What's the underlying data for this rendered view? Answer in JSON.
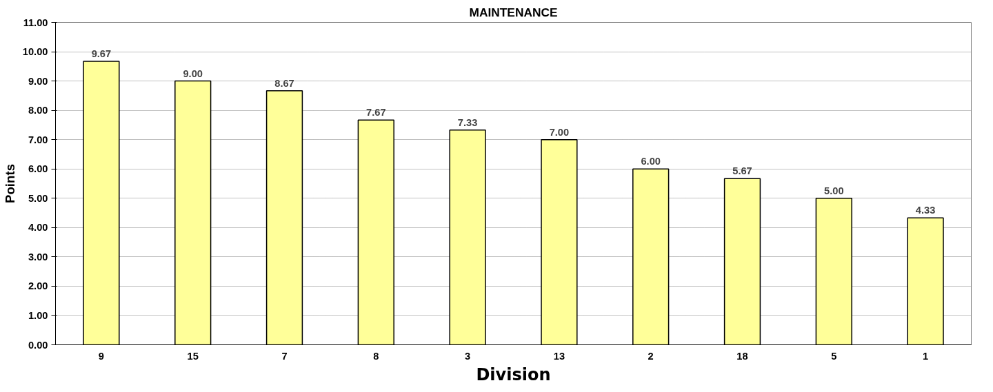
{
  "chart_data": {
    "type": "bar",
    "title": "MAINTENANCE",
    "xlabel": "Division",
    "ylabel": "Points",
    "categories": [
      "9",
      "15",
      "7",
      "8",
      "3",
      "13",
      "2",
      "18",
      "5",
      "1"
    ],
    "values": [
      9.67,
      9.0,
      8.67,
      7.67,
      7.33,
      7.0,
      6.0,
      5.67,
      5.0,
      4.33
    ],
    "value_labels": [
      "9.67",
      "9.00",
      "8.67",
      "7.67",
      "7.33",
      "7.00",
      "6.00",
      "5.67",
      "5.00",
      "4.33"
    ],
    "color": "#ffff99",
    "ylim": [
      0,
      11
    ],
    "yticks": [
      {
        "value": 0,
        "label": "0.00"
      },
      {
        "value": 1,
        "label": "1.00"
      },
      {
        "value": 2,
        "label": "2.00"
      },
      {
        "value": 3,
        "label": "3.00"
      },
      {
        "value": 4,
        "label": "4.00"
      },
      {
        "value": 5,
        "label": "5.00"
      },
      {
        "value": 6,
        "label": "6.00"
      },
      {
        "value": 7,
        "label": "7.00"
      },
      {
        "value": 8,
        "label": "8.00"
      },
      {
        "value": 9,
        "label": "9.00"
      },
      {
        "value": 10,
        "label": "10.00"
      },
      {
        "value": 11,
        "label": "11.00"
      }
    ],
    "grid": "y"
  }
}
